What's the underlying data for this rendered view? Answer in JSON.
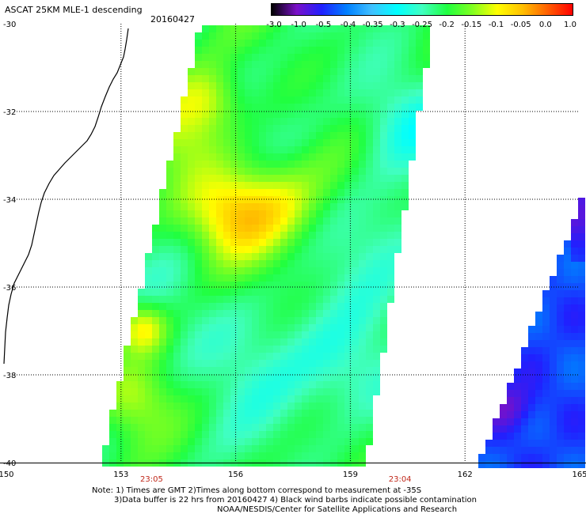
{
  "title": "ASCAT 25KM MLE-1 descending",
  "date": "20160427",
  "colorbar": {
    "labels": [
      "-3.0",
      "-1.0",
      "-0.5",
      "-0.4",
      "-0.35",
      "-0.3",
      "-0.25",
      "-0.2",
      "-0.15",
      "-0.1",
      "-0.05",
      "0.0",
      "1.0"
    ],
    "colors": [
      "#000000",
      "#7a10c8",
      "#2020ff",
      "#0080ff",
      "#40c0ff",
      "#00ffff",
      "#40ffc0",
      "#20ff40",
      "#80ff20",
      "#ffff00",
      "#ffc000",
      "#ff6000",
      "#ff0000"
    ]
  },
  "map": {
    "lon_range": [
      150,
      165
    ],
    "lat_range": [
      -30,
      -40
    ],
    "lon_ticks": [
      "150",
      "153",
      "156",
      "159",
      "162",
      "165"
    ],
    "lat_ticks": [
      "-30",
      "-32",
      "-34",
      "-36",
      "-38",
      "-40"
    ],
    "grid": "dotted",
    "swath_times": [
      "23:05",
      "23:04"
    ],
    "swath_time_lons": [
      153.8,
      160.3
    ]
  },
  "notes": {
    "line1": "Note: 1) Times are GMT 2)Times along bottom correspond to measurement at -35S",
    "line2": "3)Data buffer is 22 hrs from 20160427 4) Black wind barbs indicate possible contamination",
    "line3": "NOAA/NESDIS/Center for Satellite Applications and Research"
  }
}
